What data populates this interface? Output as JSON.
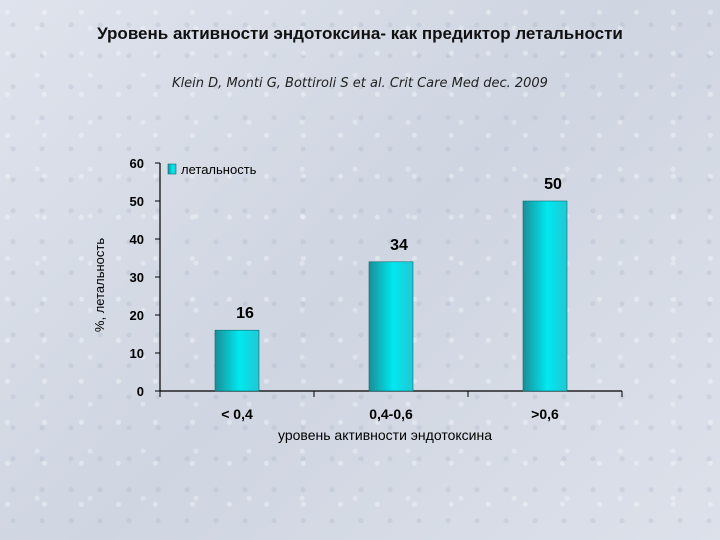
{
  "slide": {
    "title": "Уровень активности эндотоксина- как предиктор летальности",
    "subtitle": "Klein D, Monti G, Bottiroli S et al. Crit Care Med dec. 2009"
  },
  "chart_data": {
    "type": "bar",
    "categories": [
      "< 0,4",
      "0,4-0,6",
      ">0,6"
    ],
    "series": [
      {
        "name": "летальность",
        "values": [
          16,
          34,
          50
        ],
        "color": "#00e5ee"
      }
    ],
    "data_labels": [
      "16",
      "34",
      "50"
    ],
    "xlabel": "уровень активности эндотоксина",
    "ylabel": "%, летальность",
    "ylim": [
      0,
      60
    ],
    "yticks": [
      0,
      10,
      20,
      30,
      40,
      50,
      60
    ],
    "legend": "top-left",
    "grid": false
  }
}
